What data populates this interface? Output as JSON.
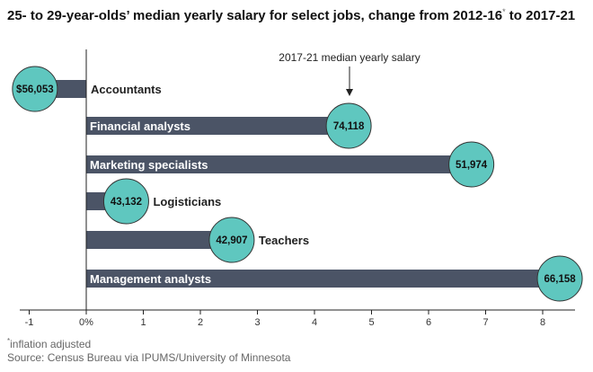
{
  "title": {
    "main_before": "25- to 29-year-olds’ median yearly salary for select jobs, change from 2012-16",
    "main_sup": "*",
    "main_after": " to 2017-21"
  },
  "annotation": "2017-21 median yearly salary",
  "footnote": {
    "mark": "*",
    "text": "inflation adjusted"
  },
  "source": "Source: Census Bureau via IPUMS/University of Minnesota",
  "colors": {
    "bar": "#4b5466",
    "bubble": "#5fc7bf",
    "bubble_stroke": "#333333",
    "axis": "#222222"
  },
  "chart_data": {
    "type": "bar",
    "orientation": "horizontal",
    "value_unit": "percent change",
    "categories": [
      "Accountants",
      "Financial analysts",
      "Marketing specialists",
      "Logisticians",
      "Teachers",
      "Management analysts"
    ],
    "values": [
      -0.9,
      4.6,
      6.75,
      0.7,
      2.55,
      8.3
    ],
    "bubble_labels": [
      "$56,053",
      "74,118",
      "51,974",
      "43,132",
      "42,907",
      "66,158"
    ],
    "xlim": [
      -1,
      8
    ],
    "xticks": [
      {
        "value": -1,
        "label": "-1"
      },
      {
        "value": 0,
        "label": "0%"
      },
      {
        "value": 1,
        "label": "1"
      },
      {
        "value": 2,
        "label": "2"
      },
      {
        "value": 3,
        "label": "3"
      },
      {
        "value": 4,
        "label": "4"
      },
      {
        "value": 5,
        "label": "5"
      },
      {
        "value": 6,
        "label": "6"
      },
      {
        "value": 7,
        "label": "7"
      },
      {
        "value": 8,
        "label": "8"
      }
    ],
    "grid": false,
    "legend": "none"
  }
}
